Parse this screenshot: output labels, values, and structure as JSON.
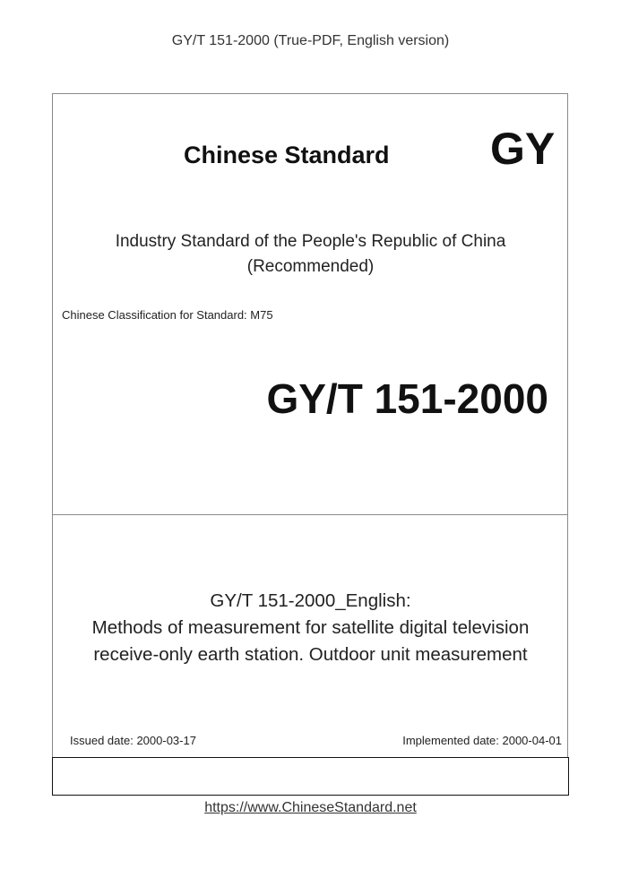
{
  "header": "GY/T 151-2000 (True-PDF, English version)",
  "cover": {
    "brand": "Chinese Standard",
    "code_short": "GY",
    "industry_line": "Industry Standard of the People's Republic of China",
    "recommended": "(Recommended)",
    "classification": "Chinese Classification for Standard: M75",
    "standard_number": "GY/T 151-2000",
    "title_line1": "GY/T 151-2000_English:",
    "title_line2": "Methods of measurement for satellite digital television",
    "title_line3": "receive-only earth station. Outdoor unit measurement",
    "issued": "Issued date: 2000-03-17",
    "implemented": "Implemented date: 2000-04-01"
  },
  "footer_link": "https://www.ChineseStandard.net"
}
